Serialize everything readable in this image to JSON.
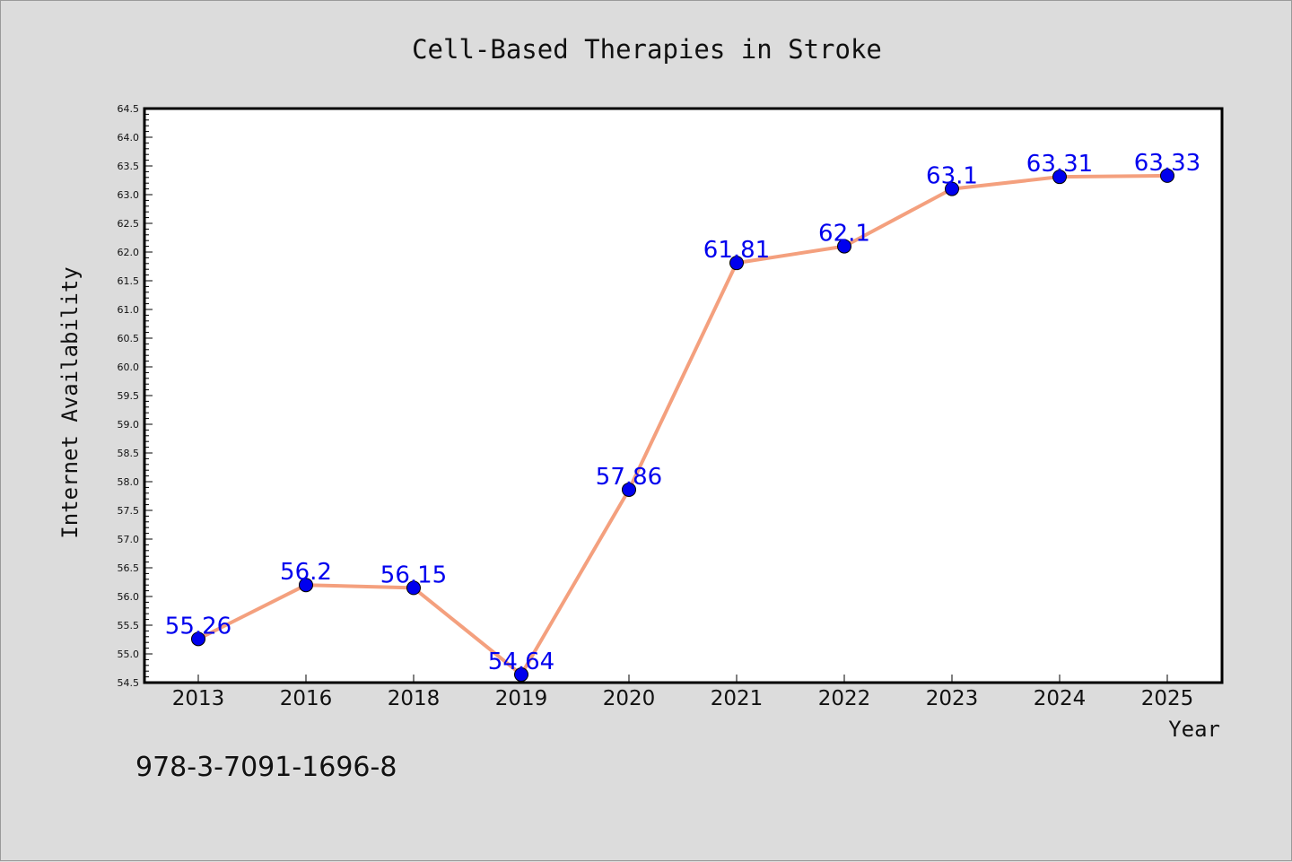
{
  "chart_data": {
    "type": "line",
    "title": "Cell-Based Therapies in Stroke",
    "xlabel": "Year",
    "ylabel": "Internet Availability",
    "categories": [
      "2013",
      "2016",
      "2018",
      "2019",
      "2020",
      "2021",
      "2022",
      "2023",
      "2024",
      "2025"
    ],
    "values": [
      55.26,
      56.2,
      56.15,
      54.64,
      57.86,
      61.81,
      62.1,
      63.1,
      63.31,
      63.33
    ],
    "data_labels": [
      "55.26",
      "56.2",
      "56.15",
      "54.64",
      "57.86",
      "61.81",
      "62.1",
      "63.1",
      "63.31",
      "63.33"
    ],
    "ylim": [
      54.5,
      64.5
    ],
    "yticks": [
      "54.5",
      "55.0",
      "55.5",
      "56.0",
      "56.5",
      "57.0",
      "57.5",
      "58.0",
      "58.5",
      "59.0",
      "59.5",
      "60.0",
      "60.5",
      "61.0",
      "61.5",
      "62.0",
      "62.5",
      "63.0",
      "63.5",
      "64.0",
      "64.5"
    ],
    "grid": false,
    "line_color": "#f4a07e",
    "marker_color": "#0000ee",
    "label_color": "#0000ee"
  },
  "footer_text": "978-3-7091-1696-8"
}
